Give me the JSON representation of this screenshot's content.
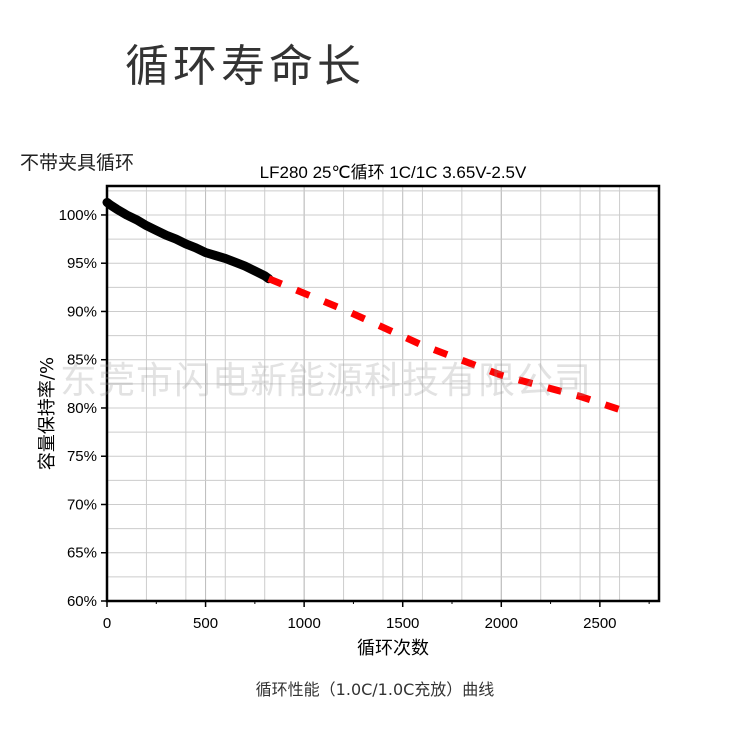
{
  "page": {
    "heading": "循环寿命长",
    "subheading": "不带夹具循环",
    "caption": "循环性能（1.0C/1.0C充放）曲线",
    "watermark": "东莞市闪电新能源科技有限公司"
  },
  "chart_data": {
    "type": "line",
    "title": "LF280 25℃循环 1C/1C 3.65V-2.5V",
    "xlabel": "循环次数",
    "ylabel": "容量保持率/%",
    "xlim": [
      0,
      2800
    ],
    "ylim": [
      60,
      103
    ],
    "x_ticks": [
      0,
      500,
      1000,
      1500,
      2000,
      2500
    ],
    "x_tick_labels": [
      "0",
      "500",
      "1000",
      "1500",
      "2000",
      "2500"
    ],
    "y_ticks": [
      60,
      65,
      70,
      75,
      80,
      85,
      90,
      95,
      100
    ],
    "y_tick_labels": [
      "60%",
      "65%",
      "70%",
      "75%",
      "80%",
      "85%",
      "90%",
      "95%",
      "100%"
    ],
    "grid": true,
    "series": [
      {
        "style": "measured",
        "color": "#000000",
        "x": [
          0,
          20,
          50,
          100,
          150,
          200,
          250,
          300,
          350,
          400,
          450,
          500,
          550,
          600,
          650,
          700,
          750,
          800,
          820
        ],
        "y": [
          101.3,
          101.0,
          100.6,
          100.0,
          99.5,
          98.9,
          98.4,
          97.9,
          97.5,
          97.0,
          96.6,
          96.1,
          95.8,
          95.5,
          95.1,
          94.7,
          94.2,
          93.7,
          93.4
        ]
      },
      {
        "style": "projected",
        "color": "#ff0000",
        "x": [
          820,
          1200,
          1600,
          2000,
          2400,
          2650
        ],
        "y": [
          93.4,
          90.2,
          86.5,
          83.4,
          81.2,
          79.5
        ]
      }
    ]
  }
}
